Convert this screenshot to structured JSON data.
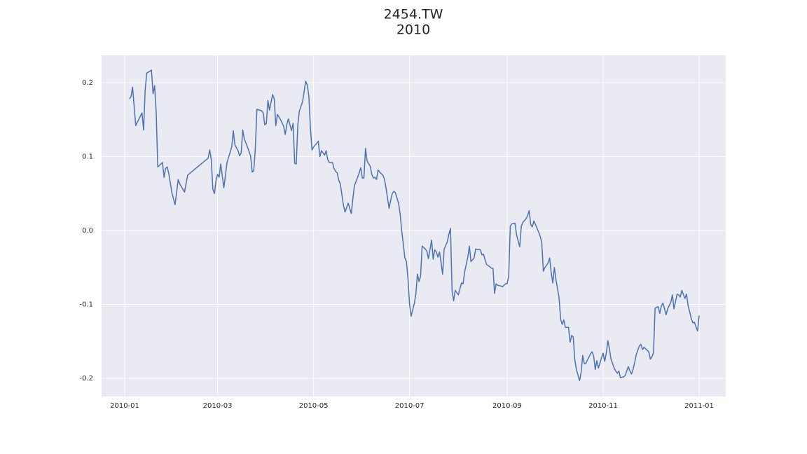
{
  "chart_data": {
    "type": "line",
    "title": "2454.TW",
    "subtitle": "2010",
    "x": [
      3,
      4,
      5,
      7,
      10,
      11,
      12,
      13,
      14,
      17,
      18,
      19,
      20,
      21,
      24,
      25,
      26,
      27,
      28,
      30,
      32,
      34,
      35,
      38,
      40,
      53,
      54,
      55,
      56,
      57,
      58,
      59,
      60,
      61,
      63,
      65,
      68,
      69,
      70,
      72,
      73,
      74,
      75,
      76,
      78,
      80,
      81,
      82,
      83,
      84,
      87,
      88,
      89,
      90,
      91,
      92,
      93,
      94,
      95,
      96,
      97,
      99,
      101,
      102,
      103,
      104,
      106,
      107,
      108,
      109,
      110,
      111,
      113,
      115,
      116,
      117,
      118,
      119,
      120,
      122,
      123,
      124,
      125,
      127,
      128,
      129,
      130,
      132,
      133,
      134,
      135,
      136,
      137,
      139,
      140,
      141,
      142,
      144,
      145,
      146,
      148,
      149,
      150,
      151,
      152,
      153,
      154,
      156,
      157,
      158,
      159,
      160,
      161,
      162,
      164,
      165,
      166,
      167,
      168,
      169,
      170,
      171,
      172,
      174,
      175,
      176,
      177,
      178,
      179,
      180,
      181,
      182,
      184,
      185,
      186,
      187,
      188,
      189,
      191,
      192,
      193,
      195,
      196,
      197,
      198,
      199,
      200,
      201,
      202,
      203,
      205,
      206,
      207,
      208,
      209,
      210,
      212,
      214,
      215,
      216,
      218,
      219,
      220,
      222,
      223,
      225,
      226,
      227,
      228,
      229,
      230,
      232,
      233,
      234,
      235,
      236,
      237,
      239,
      240,
      242,
      243,
      244,
      245,
      246,
      248,
      249,
      251,
      252,
      253,
      255,
      256,
      257,
      258,
      259,
      260,
      261,
      263,
      264,
      265,
      266,
      267,
      269,
      270,
      271,
      272,
      273,
      274,
      276,
      277,
      278,
      279,
      280,
      281,
      282,
      283,
      284,
      285,
      286,
      287,
      289,
      290,
      291,
      292,
      293,
      294,
      296,
      297,
      298,
      299,
      300,
      301,
      302,
      303,
      304,
      305,
      306,
      307,
      308,
      309,
      311,
      312,
      313,
      314,
      315,
      317,
      318,
      320,
      321,
      322,
      323,
      324,
      325,
      326,
      327,
      328,
      329,
      330,
      331,
      332,
      333,
      334,
      335,
      336,
      337,
      339,
      340,
      341,
      342,
      344,
      345,
      347,
      348,
      349,
      351,
      352,
      353,
      354,
      356,
      357,
      358,
      359,
      360,
      361,
      362,
      363,
      364,
      365
    ],
    "series": [
      {
        "color": "#4c72b0",
        "values": [
          0.178,
          0.181,
          0.194,
          0.142,
          0.155,
          0.159,
          0.136,
          0.19,
          0.213,
          0.217,
          0.185,
          0.196,
          0.16,
          0.086,
          0.092,
          0.072,
          0.084,
          0.086,
          0.077,
          0.051,
          0.035,
          0.069,
          0.063,
          0.052,
          0.075,
          0.098,
          0.109,
          0.096,
          0.056,
          0.05,
          0.067,
          0.076,
          0.072,
          0.09,
          0.058,
          0.092,
          0.113,
          0.135,
          0.116,
          0.108,
          0.101,
          0.105,
          0.136,
          0.124,
          0.113,
          0.101,
          0.079,
          0.081,
          0.111,
          0.164,
          0.162,
          0.159,
          0.143,
          0.145,
          0.176,
          0.163,
          0.174,
          0.184,
          0.178,
          0.142,
          0.157,
          0.15,
          0.141,
          0.13,
          0.143,
          0.151,
          0.135,
          0.145,
          0.091,
          0.09,
          0.143,
          0.162,
          0.174,
          0.202,
          0.197,
          0.182,
          0.139,
          0.109,
          0.113,
          0.118,
          0.121,
          0.1,
          0.108,
          0.102,
          0.108,
          0.096,
          0.092,
          0.092,
          0.084,
          0.08,
          0.078,
          0.068,
          0.063,
          0.034,
          0.025,
          0.031,
          0.037,
          0.023,
          0.044,
          0.061,
          0.072,
          0.078,
          0.085,
          0.071,
          0.071,
          0.111,
          0.094,
          0.087,
          0.076,
          0.071,
          0.072,
          0.069,
          0.082,
          0.079,
          0.075,
          0.07,
          0.058,
          0.044,
          0.03,
          0.041,
          0.05,
          0.053,
          0.051,
          0.037,
          0.023,
          0,
          -0.018,
          -0.037,
          -0.042,
          -0.065,
          -0.1,
          -0.116,
          -0.099,
          -0.086,
          -0.059,
          -0.069,
          -0.062,
          -0.021,
          -0.025,
          -0.028,
          -0.038,
          -0.013,
          -0.039,
          -0.026,
          -0.029,
          -0.036,
          -0.029,
          -0.043,
          -0.059,
          -0.025,
          -0.015,
          -0.005,
          0.003,
          -0.081,
          -0.095,
          -0.081,
          -0.087,
          -0.071,
          -0.072,
          -0.056,
          -0.036,
          -0.021,
          -0.042,
          -0.037,
          -0.025,
          -0.026,
          -0.026,
          -0.033,
          -0.032,
          -0.04,
          -0.046,
          -0.049,
          -0.051,
          -0.051,
          -0.085,
          -0.072,
          -0.074,
          -0.075,
          -0.076,
          -0.072,
          -0.072,
          -0.061,
          0.006,
          0.009,
          0.01,
          -0.006,
          -0.022,
          0.006,
          0.011,
          0.016,
          0.02,
          0.027,
          0.008,
          0.005,
          0.013,
          0.008,
          -0.002,
          -0.008,
          -0.016,
          -0.055,
          -0.05,
          -0.044,
          -0.037,
          -0.057,
          -0.071,
          -0.05,
          -0.066,
          -0.091,
          -0.12,
          -0.127,
          -0.121,
          -0.131,
          -0.131,
          -0.131,
          -0.151,
          -0.142,
          -0.144,
          -0.175,
          -0.188,
          -0.203,
          -0.192,
          -0.169,
          -0.18,
          -0.18,
          -0.175,
          -0.167,
          -0.164,
          -0.17,
          -0.188,
          -0.176,
          -0.186,
          -0.179,
          -0.172,
          -0.166,
          -0.177,
          -0.166,
          -0.149,
          -0.16,
          -0.174,
          -0.186,
          -0.19,
          -0.193,
          -0.19,
          -0.199,
          -0.198,
          -0.196,
          -0.184,
          -0.19,
          -0.194,
          -0.188,
          -0.179,
          -0.168,
          -0.162,
          -0.156,
          -0.154,
          -0.161,
          -0.158,
          -0.16,
          -0.162,
          -0.164,
          -0.174,
          -0.171,
          -0.165,
          -0.105,
          -0.103,
          -0.112,
          -0.102,
          -0.098,
          -0.114,
          -0.106,
          -0.097,
          -0.087,
          -0.106,
          -0.086,
          -0.087,
          -0.09,
          -0.081,
          -0.092,
          -0.086,
          -0.102,
          -0.11,
          -0.119,
          -0.125,
          -0.124,
          -0.13,
          -0.136,
          -0.115
        ]
      }
    ],
    "xlim": [
      -14.7,
      381.9
    ],
    "xticks": [
      {
        "value": 0,
        "label": "2010-01"
      },
      {
        "value": 59,
        "label": "2010-03"
      },
      {
        "value": 120,
        "label": "2010-05"
      },
      {
        "value": 181,
        "label": "2010-07"
      },
      {
        "value": 243,
        "label": "2010-09"
      },
      {
        "value": 304,
        "label": "2010-11"
      },
      {
        "value": 365,
        "label": "2011-01"
      }
    ],
    "ylim": [
      -0.2246,
      0.237
    ],
    "yticks": [
      -0.2,
      -0.1,
      {
        "value": 0,
        "label": "0.0"
      },
      0.1,
      0.2
    ],
    "grid": true
  }
}
